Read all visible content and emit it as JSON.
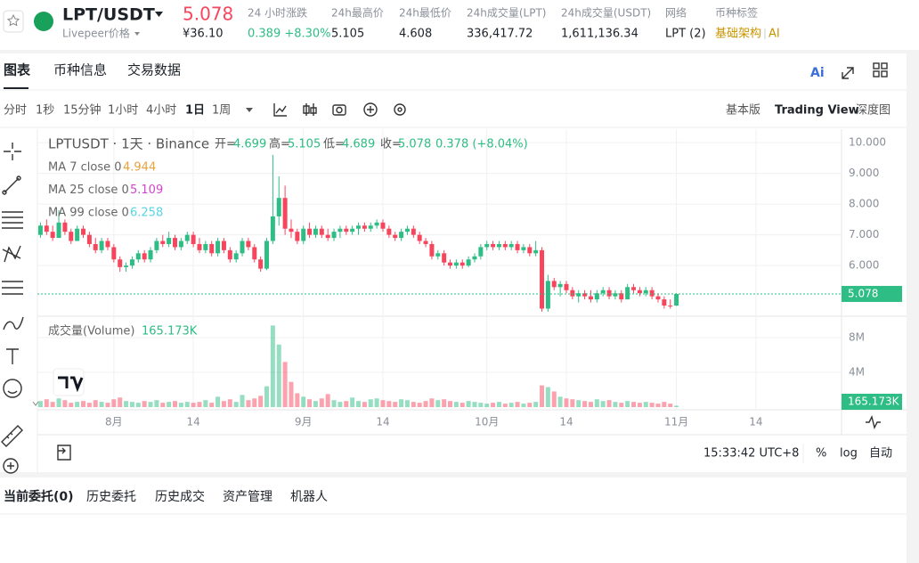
{
  "header": {
    "pair": "LPT/USDT",
    "coin_name": "Livepeer价格",
    "price": "5.078",
    "price_cny": "¥36.10",
    "stats": [
      {
        "label": "24 小时涨跌",
        "value": "0.389 +8.30%"
      },
      {
        "label": "24h最高价",
        "value": "5.105"
      },
      {
        "label": "24h最低价",
        "value": "4.608"
      },
      {
        "label": "24h成交量(LPT)",
        "value": "336,417.72"
      },
      {
        "label": "24h成交量(USDT)",
        "value": "1,611,136.34"
      },
      {
        "label": "网络",
        "value": "LPT (2)"
      }
    ],
    "tag_label": "币种标签",
    "tags": [
      "基础架构",
      "AI"
    ]
  },
  "tabs": [
    "图表",
    "币种信息",
    "交易数据"
  ],
  "ai_button": "Ai",
  "intervals": [
    "分时",
    "1秒",
    "15分钟",
    "1小时",
    "4小时",
    "1日",
    "1周"
  ],
  "views": [
    "基本版",
    "Trading View",
    "深度图"
  ],
  "chart_data": {
    "type": "candlestick",
    "symbol_line": "LPTUSDT · 1天 · Binance",
    "ohlc_labels": [
      "开=",
      "高=",
      "低=",
      "收="
    ],
    "change": "0.378 (+8.04%)",
    "indicators": [
      {
        "name": "MA 7 close 0",
        "value": "4.944",
        "color": "#e8a33d"
      },
      {
        "name": "MA 25 close 0",
        "value": "5.109",
        "color": "#d045d0"
      },
      {
        "name": "MA 99 close 0",
        "value": "6.258",
        "color": "#58d4e6"
      }
    ],
    "up_color": "#2ebd85",
    "down_color": "#f6465d",
    "candles": [
      [
        7.0,
        7.4,
        6.9,
        7.3
      ],
      [
        7.3,
        7.5,
        7.0,
        7.1
      ],
      [
        7.1,
        7.3,
        6.8,
        6.9
      ],
      [
        6.9,
        7.8,
        6.9,
        7.4
      ],
      [
        7.4,
        7.5,
        7.0,
        7.1
      ],
      [
        7.1,
        7.2,
        6.7,
        6.8
      ],
      [
        6.8,
        7.3,
        6.8,
        7.2
      ],
      [
        7.2,
        7.3,
        6.9,
        7.0
      ],
      [
        7.0,
        7.1,
        6.6,
        6.7
      ],
      [
        6.7,
        6.9,
        6.4,
        6.5
      ],
      [
        6.5,
        6.9,
        6.4,
        6.8
      ],
      [
        6.8,
        6.9,
        6.5,
        6.6
      ],
      [
        6.6,
        6.7,
        6.1,
        6.2
      ],
      [
        6.2,
        6.3,
        5.8,
        5.95
      ],
      [
        5.95,
        6.1,
        5.8,
        6.0
      ],
      [
        6.0,
        6.3,
        5.9,
        6.2
      ],
      [
        6.2,
        6.5,
        6.1,
        6.4
      ],
      [
        6.4,
        6.5,
        6.1,
        6.2
      ],
      [
        6.2,
        6.6,
        6.1,
        6.5
      ],
      [
        6.5,
        6.9,
        6.4,
        6.8
      ],
      [
        6.8,
        7.0,
        6.6,
        6.7
      ],
      [
        6.7,
        7.1,
        6.6,
        6.9
      ],
      [
        6.9,
        7.0,
        6.5,
        6.6
      ],
      [
        6.6,
        6.9,
        6.5,
        6.8
      ],
      [
        6.8,
        7.1,
        6.7,
        7.0
      ],
      [
        7.0,
        7.1,
        6.6,
        6.7
      ],
      [
        6.7,
        6.9,
        6.4,
        6.5
      ],
      [
        6.5,
        6.8,
        6.4,
        6.7
      ],
      [
        6.7,
        6.8,
        6.3,
        6.4
      ],
      [
        6.4,
        6.9,
        6.3,
        6.8
      ],
      [
        6.8,
        6.9,
        6.4,
        6.5
      ],
      [
        6.5,
        6.6,
        6.1,
        6.2
      ],
      [
        6.2,
        6.5,
        6.1,
        6.4
      ],
      [
        6.4,
        6.9,
        6.3,
        6.8
      ],
      [
        6.8,
        6.9,
        6.5,
        6.6
      ],
      [
        6.6,
        6.7,
        6.1,
        6.2
      ],
      [
        6.2,
        6.3,
        5.8,
        5.9
      ],
      [
        5.9,
        6.9,
        5.85,
        6.8
      ],
      [
        6.8,
        9.6,
        6.7,
        7.6
      ],
      [
        7.6,
        8.9,
        7.3,
        8.2
      ],
      [
        8.2,
        8.6,
        7.0,
        7.2
      ],
      [
        7.2,
        7.5,
        6.9,
        7.1
      ],
      [
        7.1,
        7.2,
        6.7,
        6.8
      ],
      [
        6.8,
        7.3,
        6.7,
        7.2
      ],
      [
        7.2,
        7.4,
        6.9,
        7.0
      ],
      [
        7.0,
        7.3,
        6.9,
        7.2
      ],
      [
        7.2,
        7.3,
        6.9,
        7.0
      ],
      [
        7.0,
        7.2,
        6.8,
        6.9
      ],
      [
        6.9,
        7.2,
        6.8,
        7.1
      ],
      [
        7.1,
        7.3,
        6.9,
        7.2
      ],
      [
        7.2,
        7.3,
        7.0,
        7.1
      ],
      [
        7.1,
        7.3,
        7.0,
        7.2
      ],
      [
        7.2,
        7.4,
        7.0,
        7.3
      ],
      [
        7.3,
        7.4,
        7.1,
        7.2
      ],
      [
        7.2,
        7.4,
        7.1,
        7.3
      ],
      [
        7.3,
        7.5,
        7.2,
        7.4
      ],
      [
        7.4,
        7.5,
        7.1,
        7.2
      ],
      [
        7.2,
        7.3,
        6.9,
        7.0
      ],
      [
        7.0,
        7.1,
        6.8,
        6.9
      ],
      [
        6.9,
        7.2,
        6.8,
        7.1
      ],
      [
        7.1,
        7.3,
        7.0,
        7.2
      ],
      [
        7.2,
        7.3,
        6.9,
        7.0
      ],
      [
        7.0,
        7.1,
        6.7,
        6.8
      ],
      [
        6.8,
        6.9,
        6.6,
        6.7
      ],
      [
        6.7,
        6.8,
        6.2,
        6.3
      ],
      [
        6.3,
        6.5,
        6.2,
        6.4
      ],
      [
        6.4,
        6.5,
        6.0,
        6.1
      ],
      [
        6.1,
        6.2,
        5.9,
        6.0
      ],
      [
        6.0,
        6.2,
        5.9,
        6.1
      ],
      [
        6.1,
        6.2,
        5.9,
        6.0
      ],
      [
        6.0,
        6.3,
        5.95,
        6.2
      ],
      [
        6.2,
        6.4,
        6.1,
        6.3
      ],
      [
        6.3,
        6.7,
        6.2,
        6.6
      ],
      [
        6.6,
        6.8,
        6.5,
        6.7
      ],
      [
        6.7,
        6.8,
        6.5,
        6.6
      ],
      [
        6.6,
        6.8,
        6.5,
        6.7
      ],
      [
        6.7,
        6.8,
        6.5,
        6.6
      ],
      [
        6.6,
        6.8,
        6.5,
        6.7
      ],
      [
        6.7,
        6.8,
        6.4,
        6.5
      ],
      [
        6.5,
        6.7,
        6.4,
        6.6
      ],
      [
        6.6,
        6.7,
        6.3,
        6.4
      ],
      [
        6.4,
        6.8,
        6.3,
        6.5
      ],
      [
        6.5,
        6.6,
        4.5,
        4.6
      ],
      [
        4.6,
        5.7,
        4.5,
        5.5
      ],
      [
        5.5,
        5.6,
        5.2,
        5.3
      ],
      [
        5.3,
        5.5,
        5.0,
        5.4
      ],
      [
        5.4,
        5.5,
        5.1,
        5.2
      ],
      [
        5.2,
        5.3,
        4.9,
        5.0
      ],
      [
        5.0,
        5.2,
        4.8,
        5.1
      ],
      [
        5.1,
        5.2,
        4.9,
        5.0
      ],
      [
        5.0,
        5.2,
        4.8,
        4.9
      ],
      [
        4.9,
        5.2,
        4.8,
        5.1
      ],
      [
        5.1,
        5.3,
        5.0,
        5.2
      ],
      [
        5.2,
        5.3,
        4.9,
        5.0
      ],
      [
        5.0,
        5.2,
        4.9,
        5.1
      ],
      [
        5.1,
        5.2,
        4.8,
        4.9
      ],
      [
        4.9,
        5.4,
        4.9,
        5.3
      ],
      [
        5.3,
        5.4,
        5.1,
        5.2
      ],
      [
        5.2,
        5.3,
        5.0,
        5.1
      ],
      [
        5.1,
        5.3,
        5.0,
        5.2
      ],
      [
        5.2,
        5.3,
        4.9,
        5.0
      ],
      [
        5.0,
        5.1,
        4.8,
        4.9
      ],
      [
        4.9,
        5.0,
        4.6,
        4.7
      ],
      [
        4.7,
        4.9,
        4.6,
        4.699
      ],
      [
        4.699,
        5.105,
        4.689,
        5.078
      ]
    ],
    "volume_title": "成交量(Volume)",
    "last_volume_label": "165.173K",
    "volumes": [
      700000,
      900000,
      600000,
      1000000,
      800000,
      500000,
      600000,
      700000,
      500000,
      800000,
      600000,
      500000,
      900000,
      1100000,
      700000,
      600000,
      500000,
      700000,
      600000,
      800000,
      500000,
      600000,
      700000,
      500000,
      600000,
      500000,
      600000,
      800000,
      500000,
      1200000,
      700000,
      900000,
      600000,
      1400000,
      800000,
      1000000,
      1300000,
      2400000,
      9400000,
      7200000,
      5200000,
      2900000,
      1600000,
      1200000,
      900000,
      700000,
      1000000,
      1500000,
      800000,
      600000,
      700000,
      1100000,
      700000,
      600000,
      900000,
      1000000,
      800000,
      700000,
      600000,
      900000,
      800000,
      600000,
      500000,
      700000,
      1000000,
      800000,
      900000,
      700000,
      600000,
      500000,
      700000,
      600000,
      500000,
      400000,
      500000,
      600000,
      400000,
      500000,
      600000,
      400000,
      500000,
      600000,
      2500000,
      2300000,
      1800000,
      1200000,
      1000000,
      900000,
      800000,
      700000,
      600000,
      900000,
      700000,
      800000,
      600000,
      500000,
      700000,
      600000,
      500000,
      600000,
      500000,
      400000,
      600000,
      400000,
      165173
    ],
    "xlim": [
      -0.5,
      131
    ],
    "xticks": [
      {
        "value": 12,
        "label": "8月"
      },
      {
        "value": 25,
        "label": "14"
      },
      {
        "value": 43,
        "label": "9月"
      },
      {
        "value": 56,
        "label": "14"
      },
      {
        "value": 73,
        "label": "10月"
      },
      {
        "value": 86,
        "label": "14"
      },
      {
        "value": 104,
        "label": "11月"
      },
      {
        "value": 117,
        "label": "14"
      }
    ],
    "ylim": [
      4.41,
      10.35
    ],
    "yticks": [
      {
        "value": 10,
        "label": "10.000"
      },
      {
        "value": 9,
        "label": "9.000"
      },
      {
        "value": 8,
        "label": "8.000"
      },
      {
        "value": 7,
        "label": "7.000"
      },
      {
        "value": 6,
        "label": "6.000"
      }
    ],
    "volume_ylim": [
      0,
      10360000
    ],
    "volume_yticks": [
      {
        "value": 8000000,
        "label": "8M"
      },
      {
        "value": 4000000,
        "label": "4M"
      }
    ],
    "grid": true
  },
  "footer": {
    "time": "15:33:42 UTC+8",
    "options": [
      "%",
      "log",
      "自动"
    ]
  },
  "order_tabs": [
    "当前委托(0)",
    "历史委托",
    "历史成交",
    "资产管理",
    "机器人"
  ]
}
